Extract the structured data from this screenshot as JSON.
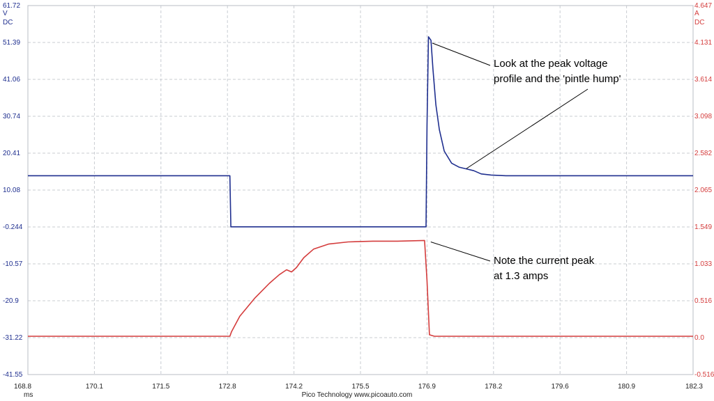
{
  "chart_data": {
    "type": "line",
    "x": {
      "unit": "ms",
      "range": [
        168.8,
        182.3
      ],
      "tick_labels": [
        "168.8",
        "170.1",
        "171.5",
        "172.8",
        "174.2",
        "175.5",
        "176.9",
        "178.2",
        "179.6",
        "180.9",
        "182.3"
      ]
    },
    "y_left": {
      "unit_lines": [
        "V",
        "DC"
      ],
      "range": [
        -41.55,
        61.72
      ],
      "tick_labels": [
        "61.72",
        "51.39",
        "41.06",
        "30.74",
        "20.41",
        "10.08",
        "-0.244",
        "-10.57",
        "-20.9",
        "-31.22",
        "-41.55"
      ],
      "color": "#1f2f8f"
    },
    "y_right": {
      "unit_lines": [
        "A",
        "DC"
      ],
      "range": [
        -0.516,
        4.647
      ],
      "tick_labels": [
        "4.647",
        "4.131",
        "3.614",
        "3.098",
        "2.582",
        "2.065",
        "1.549",
        "1.033",
        "0.516",
        "0.0",
        "-0.516"
      ],
      "color": "#d43c3c"
    },
    "grid": true,
    "series": [
      {
        "axis": "left",
        "color": "#1f2f8f",
        "points": [
          [
            168.8,
            14.1
          ],
          [
            172.9,
            14.1
          ],
          [
            172.92,
            -0.2
          ],
          [
            176.88,
            -0.2
          ],
          [
            176.9,
            28
          ],
          [
            176.93,
            53.0
          ],
          [
            176.98,
            52.0
          ],
          [
            177.02,
            44
          ],
          [
            177.08,
            34
          ],
          [
            177.15,
            27
          ],
          [
            177.25,
            21
          ],
          [
            177.4,
            17.6
          ],
          [
            177.55,
            16.5
          ],
          [
            177.7,
            16.0
          ],
          [
            177.85,
            15.5
          ],
          [
            178.0,
            14.6
          ],
          [
            178.2,
            14.3
          ],
          [
            178.5,
            14.1
          ],
          [
            182.3,
            14.1
          ]
        ]
      },
      {
        "axis": "right",
        "color": "#d43c3c",
        "points": [
          [
            168.8,
            0.02
          ],
          [
            172.9,
            0.02
          ],
          [
            172.93,
            0.08
          ],
          [
            173.1,
            0.3
          ],
          [
            173.4,
            0.55
          ],
          [
            173.7,
            0.76
          ],
          [
            173.9,
            0.88
          ],
          [
            174.05,
            0.95
          ],
          [
            174.15,
            0.92
          ],
          [
            174.25,
            0.98
          ],
          [
            174.4,
            1.12
          ],
          [
            174.6,
            1.24
          ],
          [
            174.9,
            1.31
          ],
          [
            175.3,
            1.34
          ],
          [
            175.8,
            1.35
          ],
          [
            176.3,
            1.35
          ],
          [
            176.85,
            1.36
          ],
          [
            176.9,
            0.8
          ],
          [
            176.95,
            0.04
          ],
          [
            177.05,
            0.02
          ],
          [
            182.3,
            0.02
          ]
        ]
      }
    ],
    "annotations": [
      {
        "lines": [
          "Look at the peak voltage",
          "profile and the 'pintle hump'"
        ],
        "pointers": [
          [
            176.95,
            52.0
          ],
          [
            177.7,
            16.1
          ]
        ]
      },
      {
        "lines": [
          "Note the current peak",
          "at 1.3 amps"
        ],
        "pointers_right_axis": [
          [
            176.92,
            1.34
          ]
        ]
      }
    ]
  },
  "footer": {
    "x_unit": "ms",
    "credit": "Pico Technology   www.picoauto.com"
  }
}
